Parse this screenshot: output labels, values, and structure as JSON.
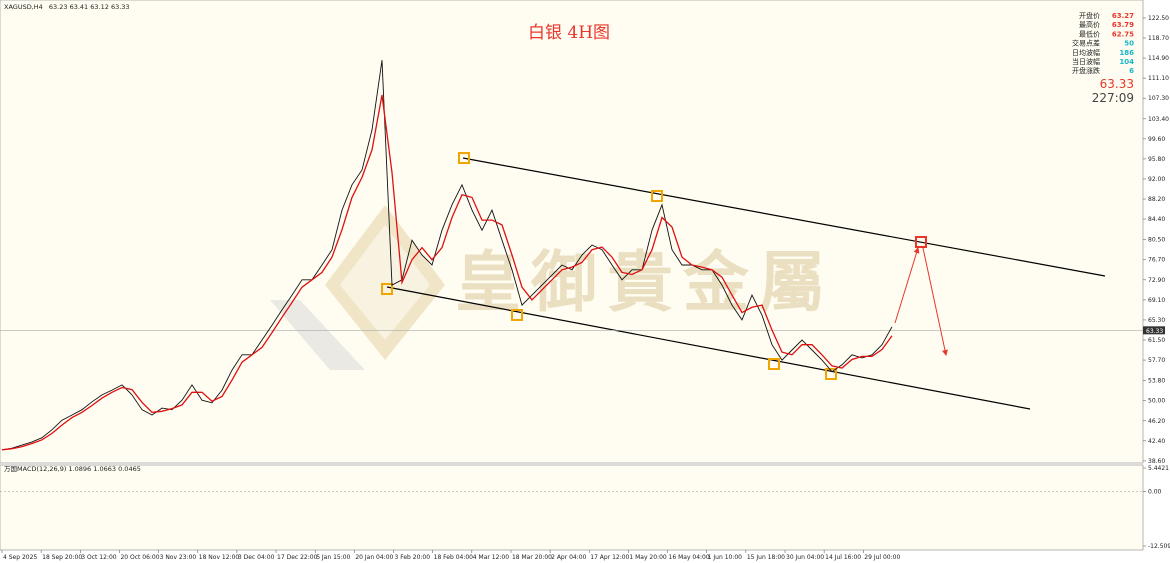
{
  "chart_data": {
    "type": "line",
    "symbol": "XAGUSD,H4",
    "ohlc": [
      63.23,
      63.41,
      63.12,
      63.33
    ],
    "title": "白银 4H图",
    "watermark": "皇御貴金屬",
    "x_labels": [
      "4 Sep 2025",
      "18 Sep 20:00",
      "3 Oct 12:00",
      "20 Oct 06:00",
      "3 Nov 23:00",
      "18 Nov 12:00",
      "3 Dec 04:00",
      "17 Dec 22:00",
      "5 Jan 15:00",
      "20 Jan 04:00",
      "3 Feb 20:00",
      "18 Feb 04:00",
      "4 Mar 12:00",
      "18 Mar 20:00",
      "2 Apr 04:00",
      "17 Apr 12:00",
      "1 May 20:00",
      "16 May 04:00",
      "1 Jun 10:00",
      "15 Jun 18:00",
      "30 Jun 04:00",
      "14 Jul 16:00",
      "29 Jul 00:00"
    ],
    "ylim": [
      38.2,
      125.9
    ],
    "yticks": [
      {
        "value": 122.5,
        "label": "122.50"
      },
      {
        "value": 118.7,
        "label": "118.70"
      },
      {
        "value": 114.9,
        "label": "114.90"
      },
      {
        "value": 111.1,
        "label": "111.10"
      },
      {
        "value": 107.3,
        "label": "107.30"
      },
      {
        "value": 103.4,
        "label": "103.40"
      },
      {
        "value": 99.6,
        "label": "99.60"
      },
      {
        "value": 95.8,
        "label": "95.80"
      },
      {
        "value": 92,
        "label": "92.00"
      },
      {
        "value": 88.2,
        "label": "88.20"
      },
      {
        "value": 84.4,
        "label": "84.40"
      },
      {
        "value": 80.5,
        "label": "80.50"
      },
      {
        "value": 76.7,
        "label": "76.70"
      },
      {
        "value": 72.9,
        "label": "72.90"
      },
      {
        "value": 69.1,
        "label": "69.10"
      },
      {
        "value": 65.3,
        "label": "65.30"
      },
      {
        "value": 61.5,
        "label": "61.50"
      },
      {
        "value": 57.7,
        "label": "57.70"
      },
      {
        "value": 53.8,
        "label": "53.80"
      },
      {
        "value": 50,
        "label": "50.00"
      },
      {
        "value": 46.2,
        "label": "46.20"
      },
      {
        "value": 42.4,
        "label": "42.40"
      },
      {
        "value": 38.6,
        "label": "38.60"
      }
    ],
    "series": [
      {
        "color": "#111111",
        "values": [
          40.7,
          41,
          41.6,
          42.2,
          43,
          44.5,
          46.3,
          47.3,
          48.3,
          49.8,
          51.1,
          52,
          53,
          51.1,
          48.3,
          47.3,
          48.6,
          48.3,
          50.1,
          53,
          50.1,
          49.6,
          52,
          55.8,
          58.7,
          58.7,
          61.5,
          64.3,
          67.2,
          70,
          72.9,
          72.9,
          75.7,
          78.6,
          86.1,
          90.9,
          93.7,
          101.3,
          114.5,
          71.9,
          72.9,
          80.4,
          77.6,
          75.7,
          82.3,
          87.1,
          90.9,
          86.1,
          82.3,
          86.1,
          80.4,
          74.8,
          68.1,
          70,
          71.9,
          73.8,
          75.7,
          74.8,
          77.6,
          79.5,
          78.6,
          75.7,
          72.9,
          74.8,
          74.8,
          82.3,
          87.1,
          78.6,
          75.7,
          75.7,
          74.8,
          74.8,
          71.9,
          68.1,
          65.3,
          70,
          66.2,
          60.6,
          57.7,
          59.6,
          61.5,
          59.6,
          57.7,
          55.5,
          56.8,
          58.7,
          58.1,
          58.7,
          60.6,
          64
        ]
      },
      {
        "color": "#e01010",
        "values": [
          40.7,
          40.9,
          41.3,
          41.9,
          42.6,
          43.8,
          45.4,
          46.8,
          47.8,
          49.1,
          50.5,
          51.6,
          52.5,
          52.1,
          49.7,
          47.8,
          48,
          48.5,
          49.2,
          51.6,
          51.6,
          49.9,
          50.8,
          53.9,
          57.3,
          58.7,
          60.1,
          62.9,
          65.8,
          68.6,
          71.5,
          72.9,
          74.3,
          77.2,
          82.4,
          88.5,
          92.3,
          97.5,
          107.9,
          93.2,
          72.4,
          76.7,
          79,
          76.7,
          79,
          84.7,
          89,
          88.5,
          84.2,
          84.2,
          83.3,
          77.6,
          71.5,
          69.1,
          71,
          72.9,
          74.8,
          75.3,
          76.2,
          78.6,
          79.1,
          77.2,
          74.3,
          73.9,
          74.8,
          78.6,
          84.7,
          82.9,
          77.2,
          75.7,
          75.3,
          74.8,
          73.4,
          70,
          66.7,
          67.7,
          68.1,
          63.4,
          59.2,
          58.7,
          60.6,
          60.6,
          58.7,
          56.6,
          56.2,
          57.8,
          58.4,
          58.4,
          59.7,
          62.3
        ]
      }
    ],
    "last_price": 63.33,
    "countdown": "227:09",
    "info_panel": [
      {
        "label": "开盘价",
        "value": 63.27,
        "color": "#e8362b"
      },
      {
        "label": "最高价",
        "value": 63.79,
        "color": "#e8362b"
      },
      {
        "label": "最低价",
        "value": 62.75,
        "color": "#e8362b"
      },
      {
        "label": "交易点差",
        "value": 50,
        "color": "#14b8c8"
      },
      {
        "label": "日均波幅",
        "value": 186,
        "color": "#14b8c8"
      },
      {
        "label": "当日波幅",
        "value": 104,
        "color": "#14b8c8"
      },
      {
        "label": "开盘涨跌",
        "value": 6,
        "color": "#14b8c8"
      }
    ],
    "macd": {
      "label": "万国MACD(12,26,9)",
      "values": [
        1.0896,
        1.0663,
        0.0465
      ],
      "ylim": [
        -13.43,
        6.13
      ],
      "yticks": [
        5.4421,
        {
          "value": 0,
          "label": "0.00"
        },
        -12.5098
      ]
    }
  }
}
